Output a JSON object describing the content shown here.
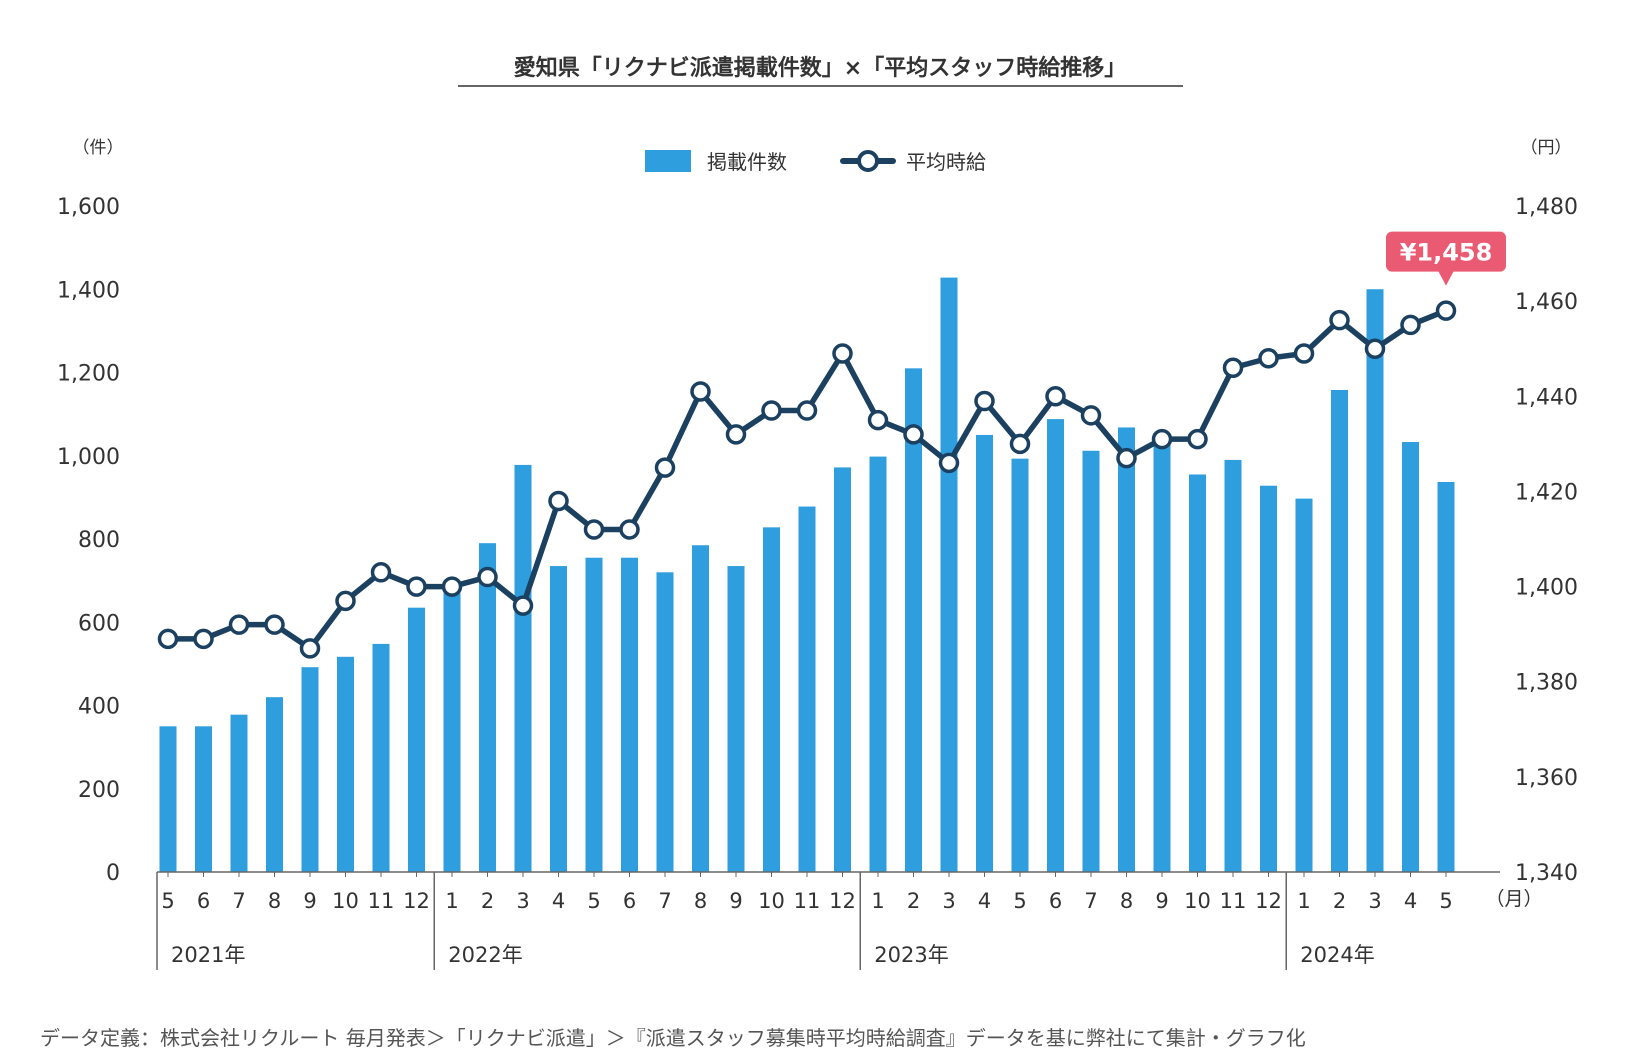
{
  "title": "愛知県「リクナビ派遣掲載件数」×「平均スタッフ時給推移」",
  "footer_note": "データ定義：株式会社リクルート 毎月発表＞「リクナビ派遣」＞『派遣スタッフ募集時平均時給調査』データを基に弊社にて集計・グラフ化",
  "colors": {
    "bar": "#2f9ede",
    "line": "#1b4060",
    "callout": "#ea5a72",
    "axis": "#666666",
    "text": "#333333"
  },
  "chart_data": {
    "type": "bar",
    "title": "愛知県「リクナビ派遣掲載件数」×「平均スタッフ時給推移」",
    "left_unit": "（件）",
    "right_unit": "（円）",
    "x_unit": "（月）",
    "legend": {
      "position": "top-center",
      "bar_label": "掲載件数",
      "line_label": "平均時給"
    },
    "callout_label": "¥1,458",
    "y_left": {
      "min": 0,
      "max": 1600,
      "ticks": [
        "0",
        "200",
        "400",
        "600",
        "800",
        "1,000",
        "1,200",
        "1,400",
        "1,600"
      ]
    },
    "y_right": {
      "min": 1340,
      "max": 1480,
      "ticks": [
        "1,340",
        "1,360",
        "1,380",
        "1,400",
        "1,420",
        "1,440",
        "1,460",
        "1,480"
      ]
    },
    "categories": [
      "5",
      "6",
      "7",
      "8",
      "9",
      "10",
      "11",
      "12",
      "1",
      "2",
      "3",
      "4",
      "5",
      "6",
      "7",
      "8",
      "9",
      "10",
      "11",
      "12",
      "1",
      "2",
      "3",
      "4",
      "5",
      "6",
      "7",
      "8",
      "9",
      "10",
      "11",
      "12",
      "1",
      "2",
      "3",
      "4",
      "5"
    ],
    "years": [
      {
        "label": "2021年",
        "start_index": 0
      },
      {
        "label": "2022年",
        "start_index": 8
      },
      {
        "label": "2023年",
        "start_index": 20
      },
      {
        "label": "2024年",
        "start_index": 32
      }
    ],
    "series": [
      {
        "name": "掲載件数",
        "type": "bar",
        "axis": "left",
        "values": [
          350,
          350,
          378,
          420,
          492,
          517,
          548,
          635,
          670,
          790,
          978,
          735,
          755,
          755,
          720,
          785,
          735,
          828,
          878,
          972,
          998,
          1210,
          1428,
          1050,
          993,
          1088,
          1012,
          1068,
          1030,
          955,
          990,
          928,
          897,
          1158,
          1400,
          1033,
          937
        ]
      },
      {
        "name": "平均時給",
        "type": "line",
        "axis": "right",
        "values": [
          1389,
          1389,
          1392,
          1392,
          1387,
          1397,
          1403,
          1400,
          1400,
          1402,
          1396,
          1418,
          1412,
          1412,
          1425,
          1441,
          1432,
          1437,
          1437,
          1449,
          1435,
          1432,
          1426,
          1439,
          1430,
          1440,
          1436,
          1427,
          1431,
          1431,
          1446,
          1448,
          1449,
          1456,
          1450,
          1455,
          1458
        ]
      }
    ]
  }
}
